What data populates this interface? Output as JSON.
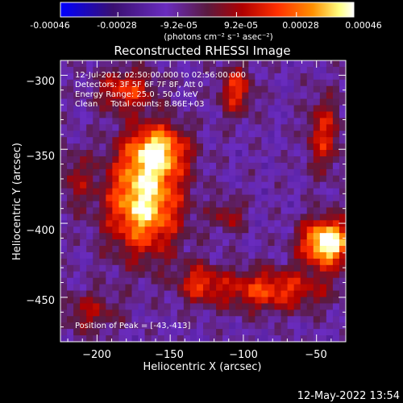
{
  "colorbar": {
    "tick_labels": [
      "-0.00046",
      "-0.00028",
      "-9.2e-05",
      "9.2e-05",
      "0.00028",
      "0.00046"
    ],
    "tick_values": [
      -0.00046,
      -0.00028,
      -9.2e-05,
      9.2e-05,
      0.00028,
      0.00046
    ],
    "range": [
      -0.00046,
      0.00046
    ],
    "units_label": "(photons cm⁻² s⁻¹ asec⁻²)",
    "colors": [
      "#0000ff",
      "#3a1070",
      "#6a2cc0",
      "#5a1a40",
      "#b00000",
      "#ff3000",
      "#ff9000",
      "#ffff80",
      "#ffffff"
    ]
  },
  "timestamp": "12-May-2022 13:54",
  "chart_data": {
    "type": "heatmap",
    "title": "Reconstructed RHESSI Image",
    "xlabel": "Heliocentric X (arcsec)",
    "ylabel": "Heliocentric Y (arcsec)",
    "xlim": [
      -225,
      -30
    ],
    "ylim": [
      -480,
      -290
    ],
    "x_ticks": [
      -200,
      -150,
      -100,
      -50
    ],
    "x_tick_labels": [
      "−200",
      "−150",
      "−100",
      "−50"
    ],
    "y_ticks": [
      -450,
      -400,
      -350,
      -300
    ],
    "y_tick_labels": [
      "−450",
      "−400",
      "−350",
      "−300"
    ],
    "annotations": [
      "12-Jul-2012 02:50:00.000 to 02:56:00.000",
      "Detectors: 3F 5F 6F 7F 8F, Att 0",
      "Energy Range: 25.0 - 50.0 keV",
      "Clean     Total counts: 8.86E+03"
    ],
    "peak_label": "Position of Peak = [-43,-413]",
    "peak": [
      -43,
      -413
    ],
    "sources": [
      {
        "x": -168,
        "y": -385,
        "amp": 1.0,
        "sx": 18,
        "sy": 25
      },
      {
        "x": -158,
        "y": -350,
        "amp": 0.75,
        "sx": 14,
        "sy": 12
      },
      {
        "x": -43,
        "y": -413,
        "amp": 1.15,
        "sx": 12,
        "sy": 11
      },
      {
        "x": -180,
        "y": -310,
        "amp": 0.55,
        "sx": 14,
        "sy": 10
      },
      {
        "x": -82,
        "y": -445,
        "amp": 0.6,
        "sx": 28,
        "sy": 10
      },
      {
        "x": -130,
        "y": -440,
        "amp": 0.45,
        "sx": 10,
        "sy": 9
      },
      {
        "x": -105,
        "y": -310,
        "amp": 0.55,
        "sx": 8,
        "sy": 12
      },
      {
        "x": -45,
        "y": -340,
        "amp": 0.5,
        "sx": 8,
        "sy": 18
      },
      {
        "x": -205,
        "y": -460,
        "amp": 0.35,
        "sx": 14,
        "sy": 10
      },
      {
        "x": -215,
        "y": -370,
        "amp": 0.3,
        "sx": 8,
        "sy": 14
      },
      {
        "x": -110,
        "y": -395,
        "amp": 0.35,
        "sx": 8,
        "sy": 8
      }
    ],
    "grid": false
  }
}
